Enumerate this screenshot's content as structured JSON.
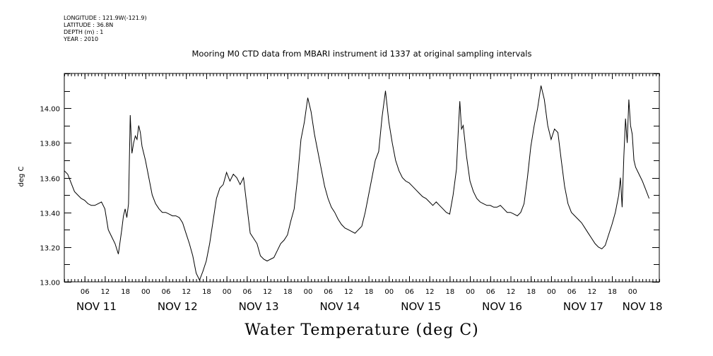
{
  "metadata": [
    "LONGITUDE : 121.9W(-121.9)",
    "LATITUDE : 36.8N",
    "DEPTH (m) : 1",
    "YEAR : 2010"
  ],
  "chart_data": {
    "type": "line",
    "title": "Mooring M0 CTD data from MBARI instrument id 1337 at original sampling intervals",
    "xlabel": "Water Temperature (deg C)",
    "ylabel": "deg C",
    "ylim": [
      13.0,
      14.2
    ],
    "xlim": [
      0,
      176
    ],
    "x_unit": "hours since NOV 11 00:00",
    "yticks": [
      "13.00",
      "13.20",
      "13.40",
      "13.60",
      "13.80",
      "14.00"
    ],
    "ytick_values": [
      13.0,
      13.2,
      13.4,
      13.6,
      13.8,
      14.0
    ],
    "hour_ticks": [
      {
        "x": 6,
        "label": "06"
      },
      {
        "x": 12,
        "label": "12"
      },
      {
        "x": 18,
        "label": "18"
      },
      {
        "x": 24,
        "label": "00"
      },
      {
        "x": 30,
        "label": "06"
      },
      {
        "x": 36,
        "label": "12"
      },
      {
        "x": 42,
        "label": "18"
      },
      {
        "x": 48,
        "label": "00"
      },
      {
        "x": 54,
        "label": "06"
      },
      {
        "x": 60,
        "label": "12"
      },
      {
        "x": 66,
        "label": "18"
      },
      {
        "x": 72,
        "label": "00"
      },
      {
        "x": 78,
        "label": "06"
      },
      {
        "x": 84,
        "label": "12"
      },
      {
        "x": 90,
        "label": "18"
      },
      {
        "x": 96,
        "label": "00"
      },
      {
        "x": 102,
        "label": "06"
      },
      {
        "x": 108,
        "label": "12"
      },
      {
        "x": 114,
        "label": "18"
      },
      {
        "x": 120,
        "label": "00"
      },
      {
        "x": 126,
        "label": "06"
      },
      {
        "x": 132,
        "label": "12"
      },
      {
        "x": 138,
        "label": "18"
      },
      {
        "x": 144,
        "label": "00"
      },
      {
        "x": 150,
        "label": "06"
      },
      {
        "x": 156,
        "label": "12"
      },
      {
        "x": 162,
        "label": "18"
      },
      {
        "x": 168,
        "label": "00"
      }
    ],
    "day_labels": [
      {
        "x": 9.5,
        "label": "NOV 11"
      },
      {
        "x": 33.5,
        "label": "NOV 12"
      },
      {
        "x": 57.5,
        "label": "NOV 13"
      },
      {
        "x": 81.5,
        "label": "NOV 14"
      },
      {
        "x": 105.5,
        "label": "NOV 15"
      },
      {
        "x": 129.5,
        "label": "NOV 16"
      },
      {
        "x": 153.5,
        "label": "NOV 17"
      },
      {
        "x": 171,
        "label": "NOV 18"
      }
    ],
    "grid": false,
    "series": [
      {
        "x": [
          0,
          1,
          2,
          3,
          4,
          5,
          6,
          7,
          8,
          9,
          10,
          11,
          12,
          13,
          14,
          15,
          16,
          17,
          17.5,
          18,
          18.5,
          19,
          19.5,
          20,
          20.5,
          21,
          21.5,
          22,
          22.5,
          23,
          24,
          25,
          26,
          27,
          28,
          29,
          30,
          31,
          32,
          33,
          34,
          35,
          36,
          37,
          38,
          39,
          40,
          41,
          42,
          43,
          44,
          45,
          46,
          47,
          48,
          49,
          50,
          51,
          52,
          53,
          54,
          55,
          56,
          57,
          58,
          59,
          60,
          61,
          62,
          63,
          64,
          65,
          66,
          67,
          68,
          69,
          70,
          71,
          72,
          73,
          74,
          75,
          76,
          77,
          78,
          79,
          80,
          81,
          82,
          83,
          84,
          85,
          86,
          87,
          88,
          89,
          90,
          91,
          92,
          93,
          94,
          95,
          96,
          97,
          98,
          99,
          100,
          101,
          102,
          103,
          104,
          105,
          106,
          107,
          108,
          109,
          110,
          111,
          112,
          113,
          114,
          115,
          116,
          116.5,
          117,
          117.5,
          118,
          119,
          120,
          121,
          122,
          123,
          124,
          125,
          126,
          127,
          128,
          129,
          130,
          131,
          132,
          133,
          134,
          135,
          136,
          137,
          138,
          139,
          140,
          141,
          142,
          143,
          144,
          145,
          146,
          147,
          148,
          149,
          150,
          151,
          152,
          153,
          154,
          155,
          156,
          157,
          158,
          159,
          160,
          161,
          162,
          163,
          164,
          164.5,
          165,
          165.5,
          166,
          166.5,
          167,
          167.5,
          168,
          168.5,
          169,
          170,
          171,
          172,
          173
        ],
        "y": [
          13.64,
          13.62,
          13.57,
          13.52,
          13.5,
          13.48,
          13.47,
          13.45,
          13.44,
          13.44,
          13.45,
          13.46,
          13.42,
          13.3,
          13.26,
          13.22,
          13.16,
          13.3,
          13.38,
          13.42,
          13.37,
          13.45,
          13.96,
          13.74,
          13.8,
          13.84,
          13.82,
          13.9,
          13.86,
          13.78,
          13.7,
          13.6,
          13.5,
          13.45,
          13.42,
          13.4,
          13.4,
          13.39,
          13.38,
          13.38,
          13.37,
          13.34,
          13.28,
          13.22,
          13.15,
          13.05,
          13.01,
          13.06,
          13.12,
          13.22,
          13.35,
          13.48,
          13.54,
          13.56,
          13.63,
          13.58,
          13.62,
          13.6,
          13.56,
          13.6,
          13.44,
          13.28,
          13.25,
          13.22,
          13.15,
          13.13,
          13.12,
          13.13,
          13.14,
          13.18,
          13.22,
          13.24,
          13.27,
          13.35,
          13.42,
          13.6,
          13.82,
          13.92,
          14.06,
          13.98,
          13.85,
          13.75,
          13.65,
          13.55,
          13.48,
          13.43,
          13.4,
          13.36,
          13.33,
          13.31,
          13.3,
          13.29,
          13.28,
          13.3,
          13.32,
          13.4,
          13.5,
          13.6,
          13.7,
          13.75,
          13.95,
          14.1,
          13.92,
          13.8,
          13.7,
          13.64,
          13.6,
          13.58,
          13.57,
          13.55,
          13.53,
          13.51,
          13.49,
          13.48,
          13.46,
          13.44,
          13.46,
          13.44,
          13.42,
          13.4,
          13.39,
          13.5,
          13.65,
          13.85,
          14.04,
          13.88,
          13.9,
          13.72,
          13.58,
          13.52,
          13.48,
          13.46,
          13.45,
          13.44,
          13.44,
          13.43,
          13.43,
          13.44,
          13.42,
          13.4,
          13.4,
          13.39,
          13.38,
          13.4,
          13.45,
          13.6,
          13.78,
          13.9,
          14.0,
          14.13,
          14.05,
          13.9,
          13.82,
          13.88,
          13.86,
          13.7,
          13.55,
          13.45,
          13.4,
          13.38,
          13.36,
          13.34,
          13.31,
          13.28,
          13.25,
          13.22,
          13.2,
          13.19,
          13.21,
          13.27,
          13.33,
          13.4,
          13.5,
          13.6,
          13.43,
          13.72,
          13.94,
          13.8,
          14.05,
          13.9,
          13.85,
          13.7,
          13.66,
          13.62,
          13.58,
          13.53,
          13.48
        ]
      }
    ]
  }
}
